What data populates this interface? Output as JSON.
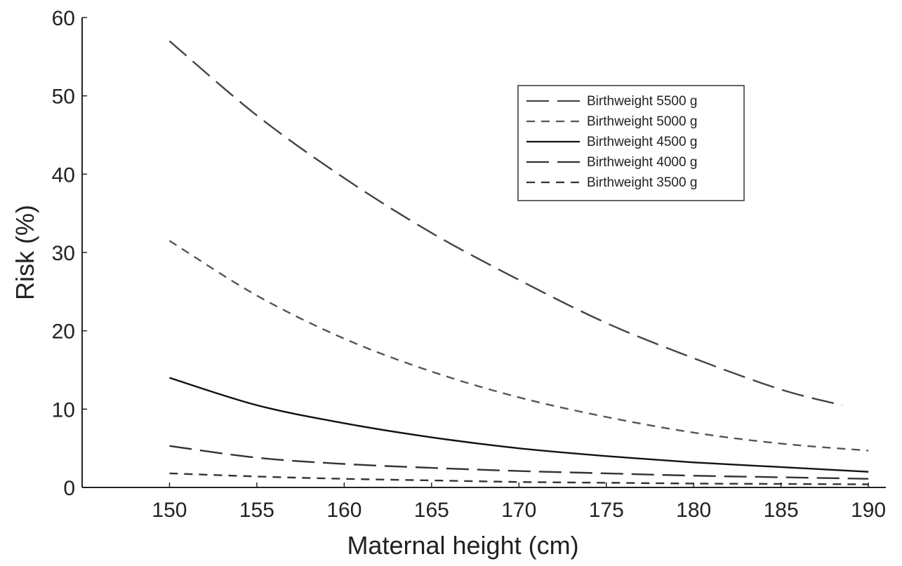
{
  "chart_data": {
    "type": "line",
    "xlabel": "Maternal height (cm)",
    "ylabel": "Risk (%)",
    "xlim": [
      145,
      191
    ],
    "ylim": [
      0,
      60
    ],
    "xticks": [
      150,
      155,
      160,
      165,
      170,
      175,
      180,
      185,
      190
    ],
    "yticks": [
      0,
      10,
      20,
      30,
      40,
      50,
      60
    ],
    "x": [
      150,
      155,
      160,
      165,
      170,
      175,
      180,
      185,
      190
    ],
    "grid": false,
    "legend_position": "top-right",
    "series": [
      {
        "name": "Birthweight 5500 g",
        "dash": "long-dash",
        "color": "#444444",
        "values": [
          57,
          47.5,
          39.5,
          32.5,
          26.5,
          21,
          16.5,
          12.5,
          10.5
        ]
      },
      {
        "name": "Birthweight 5000 g",
        "dash": "dash",
        "color": "#555555",
        "values": [
          31.5,
          24.5,
          19,
          14.8,
          11.5,
          9,
          7,
          5.6,
          4.7
        ]
      },
      {
        "name": "Birthweight 4500 g",
        "dash": "solid",
        "color": "#111111",
        "values": [
          14,
          10.5,
          8.2,
          6.4,
          5,
          4,
          3.2,
          2.6,
          2
        ]
      },
      {
        "name": "Birthweight 4000 g",
        "dash": "long-dash",
        "color": "#333333",
        "values": [
          5.3,
          3.8,
          3,
          2.5,
          2.1,
          1.8,
          1.5,
          1.3,
          1.1
        ]
      },
      {
        "name": "Birthweight 3500 g",
        "dash": "dash",
        "color": "#333333",
        "values": [
          1.8,
          1.4,
          1.1,
          0.9,
          0.7,
          0.6,
          0.5,
          0.45,
          0.4
        ]
      }
    ]
  }
}
